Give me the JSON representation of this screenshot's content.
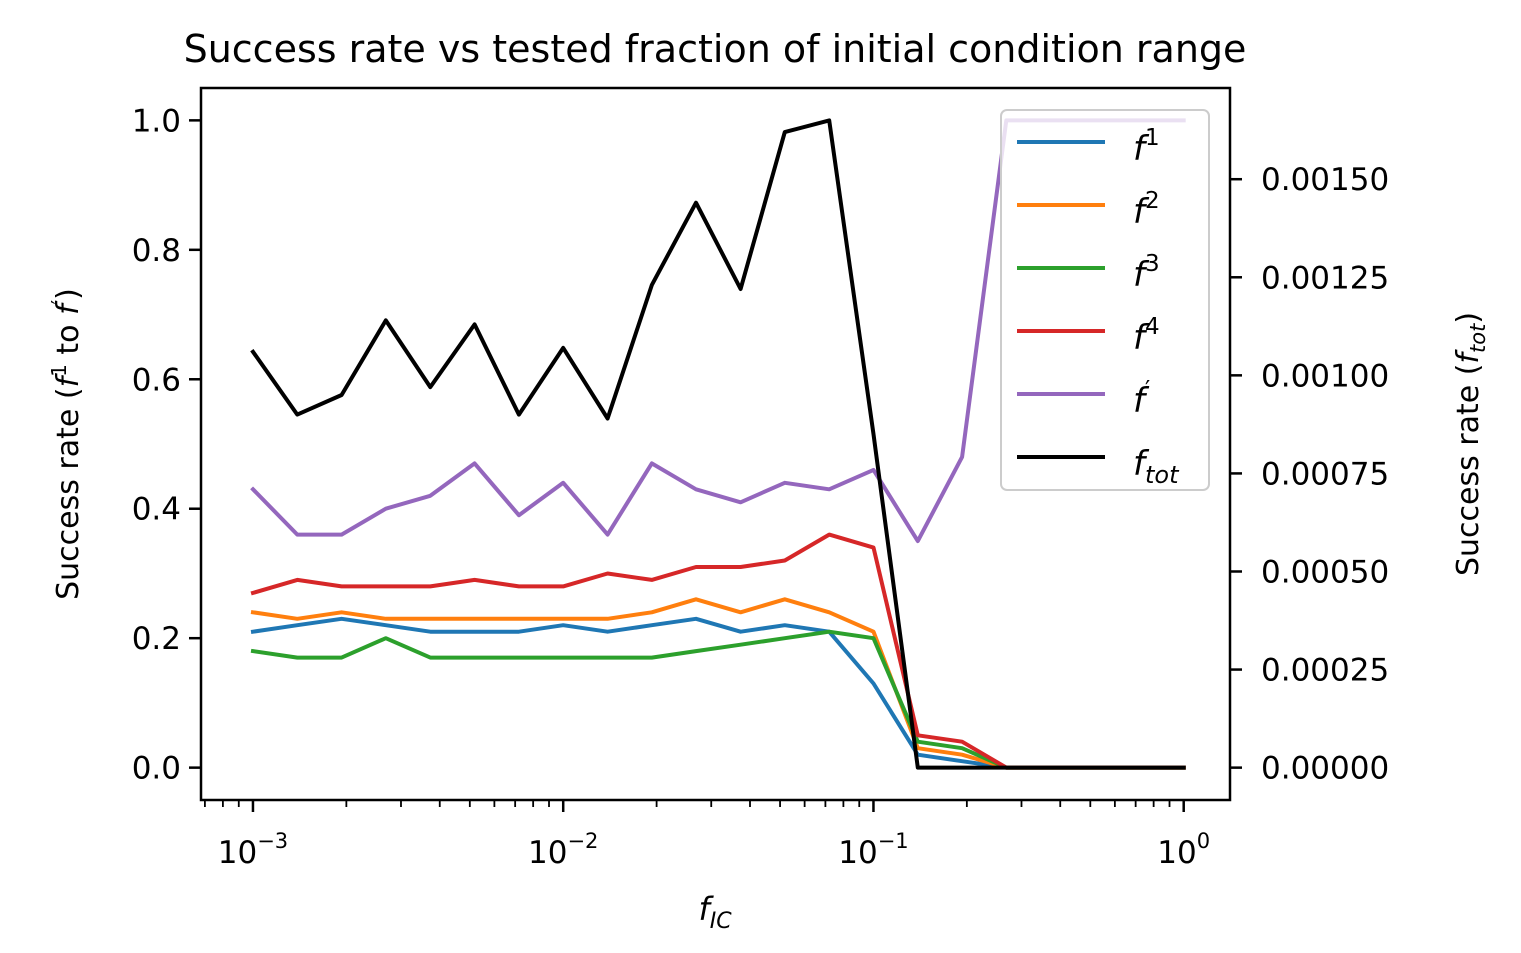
{
  "chart_data": {
    "type": "line",
    "title": "Success rate vs tested fraction of initial condition range",
    "xlabel": {
      "base": "f",
      "sub": "IC"
    },
    "ylabel_left": {
      "prefix": "Success rate (",
      "f1": "f",
      "f1_sup": "1",
      "mid": " to ",
      "f2": "f",
      "f2_sup": "′",
      "suffix": ")"
    },
    "ylabel_right": {
      "prefix": "Success rate (",
      "base": "f",
      "sub": "tot",
      "suffix": ")"
    },
    "x_scale": "log",
    "xlim": [
      0.00068,
      1.41
    ],
    "ylim_left": [
      -0.05,
      1.05
    ],
    "ylim_right": [
      -8.25e-05,
      0.0017325
    ],
    "x_ticks": [
      {
        "value": 0.001,
        "base": "10",
        "exp": "−3"
      },
      {
        "value": 0.01,
        "base": "10",
        "exp": "−2"
      },
      {
        "value": 0.1,
        "base": "10",
        "exp": "−1"
      },
      {
        "value": 1,
        "base": "10",
        "exp": "0"
      }
    ],
    "y_ticks_left": [
      {
        "value": 0.0,
        "label": "0.0"
      },
      {
        "value": 0.2,
        "label": "0.2"
      },
      {
        "value": 0.4,
        "label": "0.4"
      },
      {
        "value": 0.6,
        "label": "0.6"
      },
      {
        "value": 0.8,
        "label": "0.8"
      },
      {
        "value": 1.0,
        "label": "1.0"
      }
    ],
    "y_ticks_right": [
      {
        "value": 0.0,
        "label": "0.00000"
      },
      {
        "value": 0.00025,
        "label": "0.00025"
      },
      {
        "value": 0.0005,
        "label": "0.00050"
      },
      {
        "value": 0.00075,
        "label": "0.00075"
      },
      {
        "value": 0.001,
        "label": "0.00100"
      },
      {
        "value": 0.00125,
        "label": "0.00125"
      },
      {
        "value": 0.0015,
        "label": "0.00150"
      }
    ],
    "x": [
      0.001,
      0.00139,
      0.00193,
      0.00268,
      0.00373,
      0.00518,
      0.0072,
      0.01,
      0.0139,
      0.0193,
      0.0268,
      0.0373,
      0.0518,
      0.072,
      0.1,
      0.139,
      0.193,
      0.268,
      0.373,
      0.518,
      0.72,
      1.0
    ],
    "legend_position": "upper right",
    "series": [
      {
        "name": "f",
        "sup": "1",
        "sub": "",
        "color": "#1f77b4",
        "axis": "left",
        "values": [
          0.21,
          0.22,
          0.23,
          0.22,
          0.21,
          0.21,
          0.21,
          0.22,
          0.21,
          0.22,
          0.23,
          0.21,
          0.22,
          0.21,
          0.13,
          0.02,
          0.01,
          0.0,
          0.0,
          0.0,
          0.0,
          0.0
        ]
      },
      {
        "name": "f",
        "sup": "2",
        "sub": "",
        "color": "#ff7f0e",
        "axis": "left",
        "values": [
          0.24,
          0.23,
          0.24,
          0.23,
          0.23,
          0.23,
          0.23,
          0.23,
          0.23,
          0.24,
          0.26,
          0.24,
          0.26,
          0.24,
          0.21,
          0.03,
          0.02,
          0.0,
          0.0,
          0.0,
          0.0,
          0.0
        ]
      },
      {
        "name": "f",
        "sup": "3",
        "sub": "",
        "color": "#2ca02c",
        "axis": "left",
        "values": [
          0.18,
          0.17,
          0.17,
          0.2,
          0.17,
          0.17,
          0.17,
          0.17,
          0.17,
          0.17,
          0.18,
          0.19,
          0.2,
          0.21,
          0.2,
          0.04,
          0.03,
          0.0,
          0.0,
          0.0,
          0.0,
          0.0
        ]
      },
      {
        "name": "f",
        "sup": "4",
        "sub": "",
        "color": "#d62728",
        "axis": "left",
        "values": [
          0.27,
          0.29,
          0.28,
          0.28,
          0.28,
          0.29,
          0.28,
          0.28,
          0.3,
          0.29,
          0.31,
          0.31,
          0.32,
          0.36,
          0.34,
          0.05,
          0.04,
          0.0,
          0.0,
          0.0,
          0.0,
          0.0
        ]
      },
      {
        "name": "f",
        "sup": "′",
        "sub": "",
        "color": "#9467bd",
        "axis": "left",
        "values": [
          0.43,
          0.36,
          0.36,
          0.4,
          0.42,
          0.47,
          0.39,
          0.44,
          0.36,
          0.47,
          0.43,
          0.41,
          0.44,
          0.43,
          0.46,
          0.35,
          0.48,
          1.0,
          1.0,
          1.0,
          1.0,
          1.0
        ]
      },
      {
        "name": "f",
        "sup": "",
        "sub": "tot",
        "color": "#000000",
        "axis": "right",
        "values": [
          0.00106,
          0.0009,
          0.00095,
          0.00114,
          0.00097,
          0.00113,
          0.0009,
          0.00107,
          0.00089,
          0.00123,
          0.00144,
          0.00122,
          0.00162,
          0.00165,
          0.00085,
          0.0,
          0.0,
          0.0,
          0.0,
          0.0,
          0.0,
          0.0
        ]
      }
    ]
  }
}
